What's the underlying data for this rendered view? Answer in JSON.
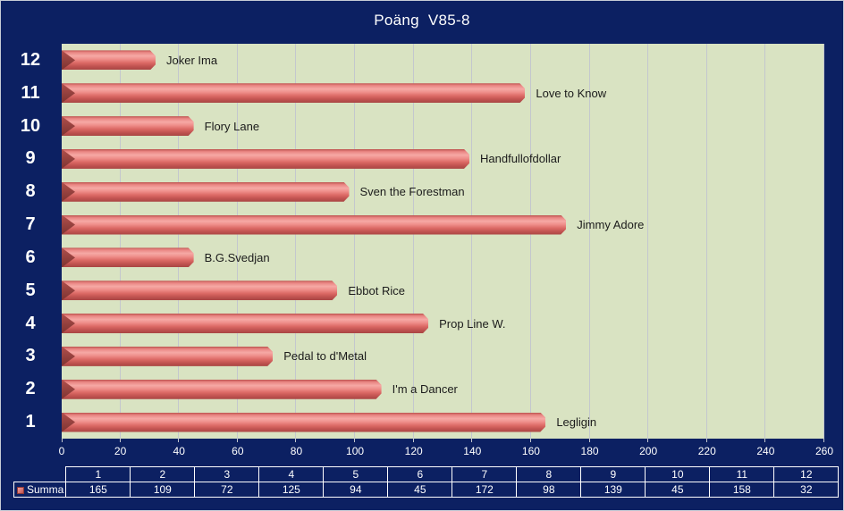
{
  "chart_data": {
    "type": "bar",
    "orientation": "horizontal",
    "title": "Poäng  V85-8",
    "categories": [
      "1",
      "2",
      "3",
      "4",
      "5",
      "6",
      "7",
      "8",
      "9",
      "10",
      "11",
      "12"
    ],
    "series": [
      {
        "name": "Summa",
        "values": [
          165,
          109,
          72,
          125,
          94,
          45,
          172,
          98,
          139,
          45,
          158,
          32
        ]
      }
    ],
    "point_labels": [
      "Legligin",
      "I'm a Dancer",
      "Pedal to d'Metal",
      "Prop Line W.",
      "Ebbot Rice",
      "B.G.Svedjan",
      "Jimmy Adore",
      "Sven the Forestman",
      "Handfullofdollar",
      "Flory Lane",
      "Love to Know",
      "Joker Ima"
    ],
    "xlabel": "",
    "ylabel": "",
    "xlim": [
      0,
      260
    ],
    "x_ticks": [
      0,
      20,
      40,
      60,
      80,
      100,
      120,
      140,
      160,
      180,
      200,
      220,
      240,
      260
    ],
    "grid": true,
    "category_order_on_screen": "12 at top, 1 at bottom",
    "legend_position": "data-table-bottom-left",
    "colors": {
      "background": "#0c2062",
      "plot_background": "#d9e3c2",
      "bar": "#c0504d",
      "gridline": "#c3c7ce",
      "axis_text": "#ffffff",
      "point_label_text": "#1b1b1b"
    }
  }
}
